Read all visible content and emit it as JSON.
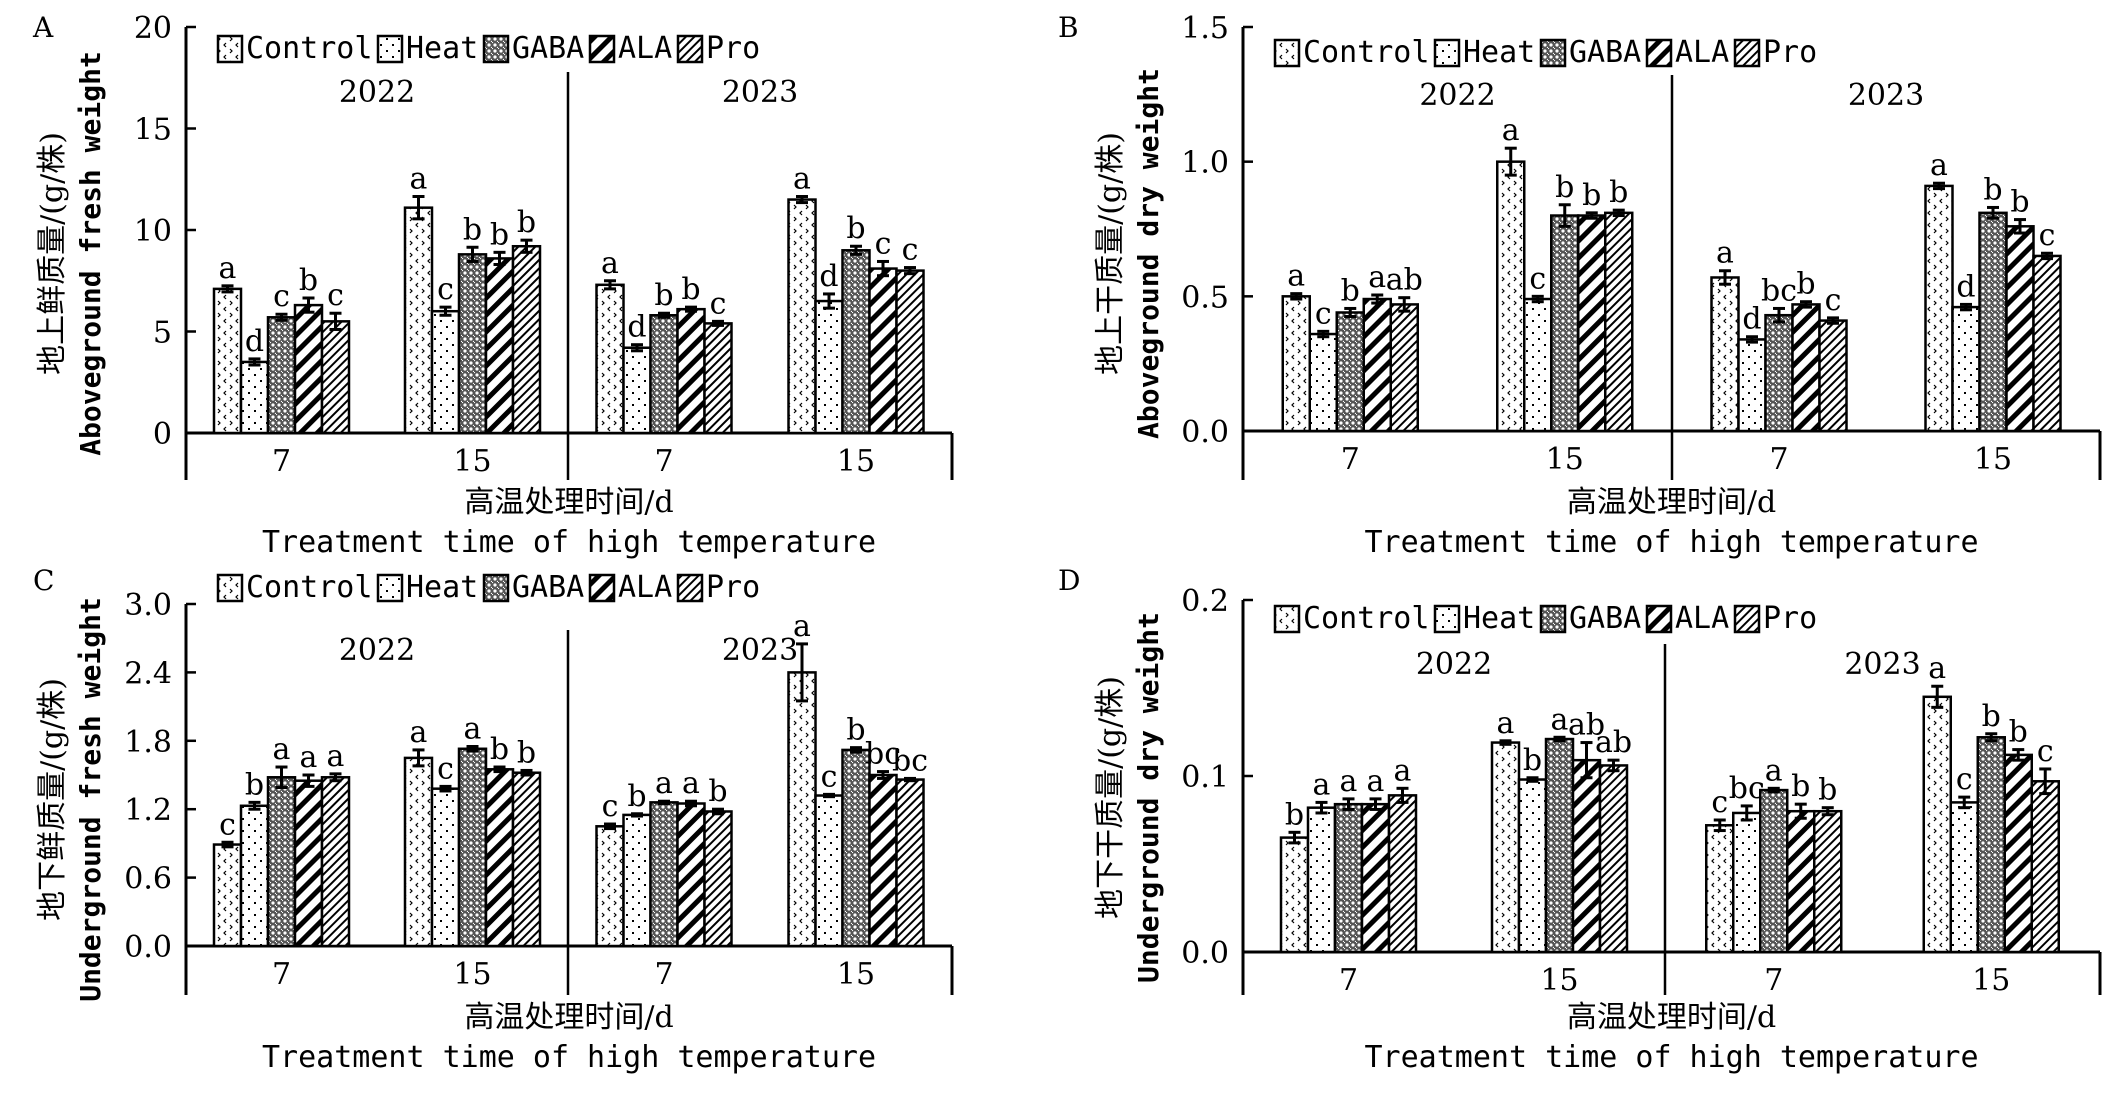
{
  "figure": {
    "legend_items": [
      {
        "name": "Control",
        "pattern": "control"
      },
      {
        "name": "Heat",
        "pattern": "heat"
      },
      {
        "name": "GABA",
        "pattern": "gaba"
      },
      {
        "name": "ALA",
        "pattern": "ala"
      },
      {
        "name": "Pro",
        "pattern": "pro"
      }
    ],
    "colors": {
      "ink": "#000000",
      "background": "#ffffff"
    }
  },
  "chart_data": [
    {
      "panel": "A",
      "type": "bar",
      "ylabel_cn": "地上鲜质量/(g/株)",
      "ylabel_en": "Aboveground fresh weight",
      "xlabel_cn": "高温处理时间/d",
      "xlabel_en": "Treatment time of high temperature",
      "ylim": [
        0,
        20
      ],
      "yticks": [
        "0",
        "5",
        "10",
        "15",
        "20"
      ],
      "ytick_values": [
        0,
        5,
        10,
        15,
        20
      ],
      "years": [
        "2022",
        "2023"
      ],
      "categories": [
        "7",
        "15",
        "7",
        "15"
      ],
      "series_names": [
        "Control",
        "Heat",
        "GABA",
        "ALA",
        "Pro"
      ],
      "groups": [
        {
          "year": "2022",
          "day": "7",
          "values": [
            7.1,
            3.5,
            5.7,
            6.3,
            5.5
          ],
          "errors": [
            0.15,
            0.15,
            0.15,
            0.35,
            0.4
          ],
          "letters": [
            "a",
            "d",
            "c",
            "b",
            "c"
          ]
        },
        {
          "year": "2022",
          "day": "15",
          "values": [
            11.1,
            6.0,
            8.8,
            8.6,
            9.2
          ],
          "errors": [
            0.55,
            0.2,
            0.35,
            0.3,
            0.3
          ],
          "letters": [
            "a",
            "c",
            "b",
            "b",
            "b"
          ]
        },
        {
          "year": "2023",
          "day": "7",
          "values": [
            7.3,
            4.2,
            5.8,
            6.1,
            5.4
          ],
          "errors": [
            0.2,
            0.15,
            0.1,
            0.1,
            0.1
          ],
          "letters": [
            "a",
            "d",
            "b",
            "b",
            "c"
          ]
        },
        {
          "year": "2023",
          "day": "15",
          "values": [
            11.5,
            6.5,
            9.0,
            8.1,
            8.0
          ],
          "errors": [
            0.15,
            0.35,
            0.2,
            0.35,
            0.15
          ],
          "letters": [
            "a",
            "d",
            "b",
            "c",
            "c"
          ]
        }
      ]
    },
    {
      "panel": "B",
      "type": "bar",
      "ylabel_cn": "地上干质量/(g/株)",
      "ylabel_en": "Aboveground dry weight",
      "xlabel_cn": "高温处理时间/d",
      "xlabel_en": "Treatment time of high temperature",
      "ylim": [
        0,
        1.5
      ],
      "yticks": [
        "0.0",
        "0.5",
        "1.0",
        "1.5"
      ],
      "ytick_values": [
        0,
        0.5,
        1.0,
        1.5
      ],
      "years": [
        "2022",
        "2023"
      ],
      "categories": [
        "7",
        "15",
        "7",
        "15"
      ],
      "series_names": [
        "Control",
        "Heat",
        "GABA",
        "ALA",
        "Pro"
      ],
      "groups": [
        {
          "year": "2022",
          "day": "7",
          "values": [
            0.5,
            0.36,
            0.44,
            0.49,
            0.47
          ],
          "errors": [
            0.01,
            0.01,
            0.015,
            0.015,
            0.025
          ],
          "letters": [
            "a",
            "c",
            "b",
            "a",
            "ab"
          ]
        },
        {
          "year": "2022",
          "day": "15",
          "values": [
            1.0,
            0.49,
            0.8,
            0.8,
            0.81
          ],
          "errors": [
            0.05,
            0.01,
            0.04,
            0.01,
            0.01
          ],
          "letters": [
            "a",
            "c",
            "b",
            "b",
            "b"
          ]
        },
        {
          "year": "2023",
          "day": "7",
          "values": [
            0.57,
            0.34,
            0.43,
            0.47,
            0.41
          ],
          "errors": [
            0.025,
            0.01,
            0.025,
            0.01,
            0.01
          ],
          "letters": [
            "a",
            "d",
            "bc",
            "b",
            "c"
          ]
        },
        {
          "year": "2023",
          "day": "15",
          "values": [
            0.91,
            0.46,
            0.81,
            0.76,
            0.65
          ],
          "errors": [
            0.01,
            0.01,
            0.02,
            0.025,
            0.01
          ],
          "letters": [
            "a",
            "d",
            "b",
            "b",
            "c"
          ]
        }
      ]
    },
    {
      "panel": "C",
      "type": "bar",
      "ylabel_cn": "地下鲜质量/(g/株)",
      "ylabel_en": "Underground fresh weight",
      "xlabel_cn": "高温处理时间/d",
      "xlabel_en": "Treatment time of high temperature",
      "ylim": [
        0,
        3.0
      ],
      "yticks": [
        "0.0",
        "0.6",
        "1.2",
        "1.8",
        "2.4",
        "3.0"
      ],
      "ytick_values": [
        0,
        0.6,
        1.2,
        1.8,
        2.4,
        3.0
      ],
      "years": [
        "2022",
        "2023"
      ],
      "categories": [
        "7",
        "15",
        "7",
        "15"
      ],
      "series_names": [
        "Control",
        "Heat",
        "GABA",
        "ALA",
        "Pro"
      ],
      "groups": [
        {
          "year": "2022",
          "day": "7",
          "values": [
            0.89,
            1.23,
            1.48,
            1.45,
            1.48
          ],
          "errors": [
            0.02,
            0.03,
            0.09,
            0.05,
            0.03
          ],
          "letters": [
            "c",
            "b",
            "a",
            "a",
            "a"
          ]
        },
        {
          "year": "2022",
          "day": "15",
          "values": [
            1.65,
            1.38,
            1.73,
            1.55,
            1.52
          ],
          "errors": [
            0.07,
            0.02,
            0.02,
            0.02,
            0.02
          ],
          "letters": [
            "a",
            "c",
            "a",
            "b",
            "b"
          ]
        },
        {
          "year": "2023",
          "day": "7",
          "values": [
            1.05,
            1.15,
            1.26,
            1.25,
            1.18
          ],
          "errors": [
            0.02,
            0.01,
            0.01,
            0.02,
            0.02
          ],
          "letters": [
            "c",
            "b",
            "a",
            "a",
            "b"
          ]
        },
        {
          "year": "2023",
          "day": "15",
          "values": [
            2.4,
            1.32,
            1.72,
            1.5,
            1.46
          ],
          "errors": [
            0.25,
            0.01,
            0.02,
            0.03,
            0.01
          ],
          "letters": [
            "a",
            "c",
            "b",
            "bc",
            "bc"
          ]
        }
      ]
    },
    {
      "panel": "D",
      "type": "bar",
      "ylabel_cn": "地下干质量/(g/株)",
      "ylabel_en": "Underground dry weight",
      "xlabel_cn": "高温处理时间/d",
      "xlabel_en": "Treatment time of high temperature",
      "ylim": [
        0,
        0.2
      ],
      "yticks": [
        "0.0",
        "0.1",
        "0.2"
      ],
      "ytick_values": [
        0,
        0.1,
        0.2
      ],
      "years": [
        "2022",
        "2023"
      ],
      "categories": [
        "7",
        "15",
        "7",
        "15"
      ],
      "series_names": [
        "Control",
        "Heat",
        "GABA",
        "ALA",
        "Pro"
      ],
      "groups": [
        {
          "year": "2022",
          "day": "7",
          "values": [
            0.065,
            0.082,
            0.084,
            0.084,
            0.089
          ],
          "errors": [
            0.003,
            0.003,
            0.003,
            0.003,
            0.004
          ],
          "letters": [
            "b",
            "a",
            "a",
            "a",
            "a"
          ]
        },
        {
          "year": "2022",
          "day": "15",
          "values": [
            0.119,
            0.098,
            0.121,
            0.109,
            0.106
          ],
          "errors": [
            0.001,
            0.001,
            0.001,
            0.01,
            0.003
          ],
          "letters": [
            "a",
            "b",
            "a",
            "ab",
            "ab"
          ]
        },
        {
          "year": "2023",
          "day": "7",
          "values": [
            0.072,
            0.079,
            0.092,
            0.08,
            0.08
          ],
          "errors": [
            0.003,
            0.004,
            0.001,
            0.004,
            0.002
          ],
          "letters": [
            "c",
            "bc",
            "a",
            "b",
            "b"
          ]
        },
        {
          "year": "2023",
          "day": "15",
          "values": [
            0.145,
            0.085,
            0.122,
            0.112,
            0.097
          ],
          "errors": [
            0.006,
            0.003,
            0.002,
            0.003,
            0.007
          ],
          "letters": [
            "a",
            "c",
            "b",
            "b",
            "c"
          ]
        }
      ]
    }
  ]
}
